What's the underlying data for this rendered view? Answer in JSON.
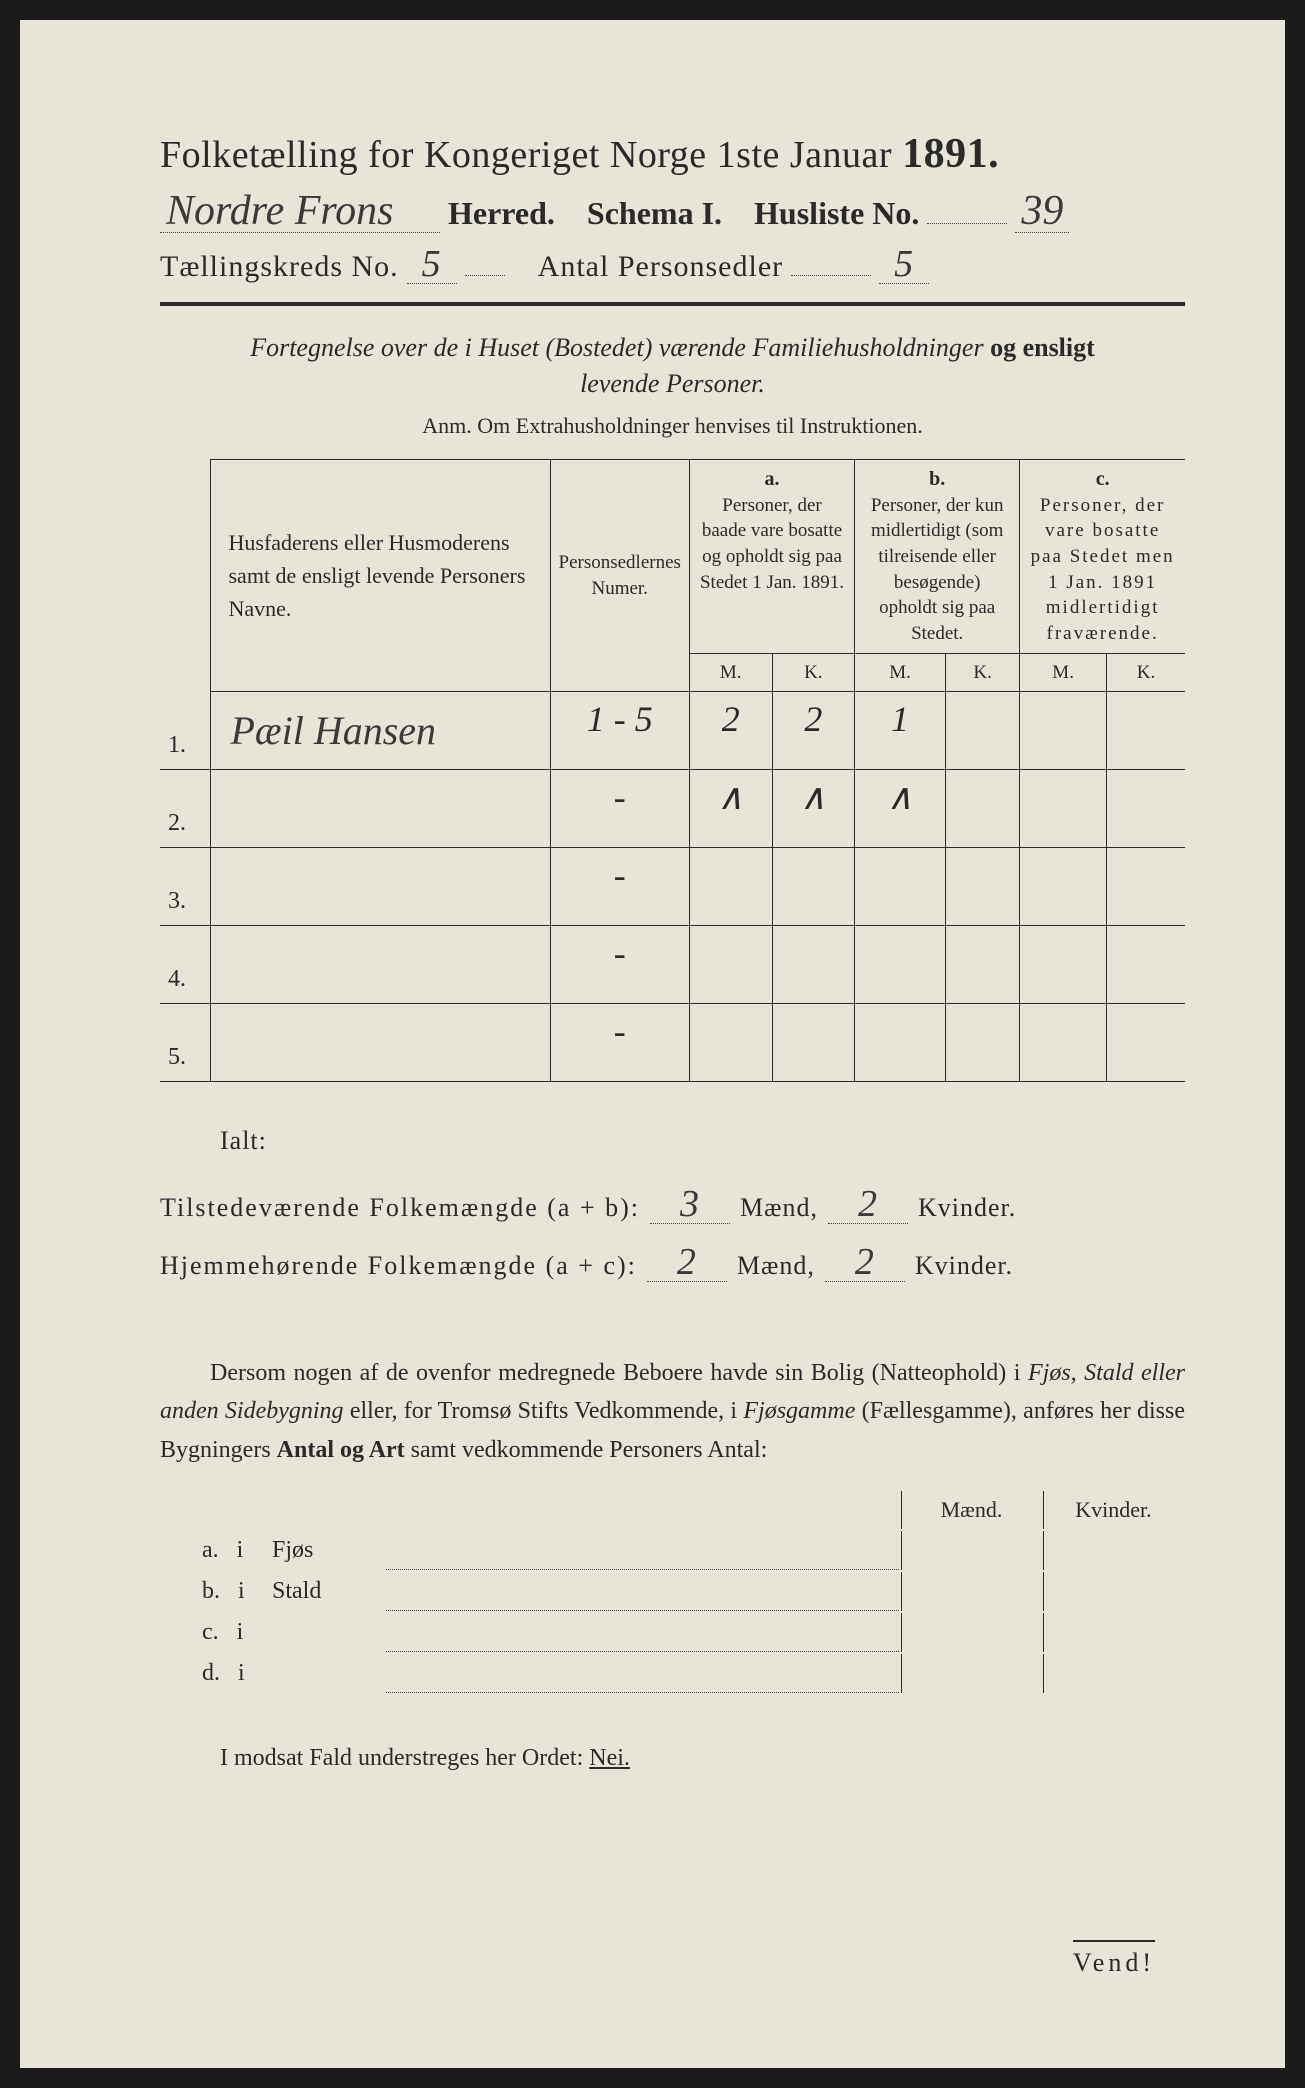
{
  "header": {
    "title_prefix": "Folketælling for Kongeriget Norge 1ste Januar",
    "year": "1891.",
    "herred_value": "Nordre Frons",
    "herred_label": "Herred.",
    "schema_label": "Schema I.",
    "husliste_label": "Husliste No.",
    "husliste_value": "39",
    "kreds_label": "Tællingskreds No.",
    "kreds_value": "5",
    "antal_label": "Antal Personsedler",
    "antal_value": "5"
  },
  "subtitle": {
    "line1_italic1": "Fortegnelse over de i Huset (Bostedet) værende Familiehusholdninger",
    "line1_bold": "og ensligt",
    "line2_italic": "levende Personer."
  },
  "anm": "Anm. Om Extrahusholdninger henvises til Instruktionen.",
  "table": {
    "head_names": "Husfaderens eller Husmoderens samt de ensligt levende Personers Navne.",
    "head_person": "Personsedlernes Numer.",
    "col_a_letter": "a.",
    "col_a": "Personer, der baade vare bosatte og opholdt sig paa Stedet 1 Jan. 1891.",
    "col_b_letter": "b.",
    "col_b": "Personer, der kun midlertidigt (som tilreisende eller besøgende) opholdt sig paa Stedet.",
    "col_c_letter": "c.",
    "col_c": "Personer, der vare bosatte paa Stedet men 1 Jan. 1891 midlertidigt fraværende.",
    "m": "M.",
    "k": "K.",
    "rows": [
      {
        "num": "1.",
        "name": "Pæil Hansen",
        "person": "1 - 5",
        "a_m": "2",
        "a_k": "2",
        "b_m": "1",
        "b_k": "",
        "c_m": "",
        "c_k": ""
      },
      {
        "num": "2.",
        "name": "",
        "person": "-",
        "a_m": "∧",
        "a_k": "∧",
        "b_m": "∧",
        "b_k": "",
        "c_m": "",
        "c_k": ""
      },
      {
        "num": "3.",
        "name": "",
        "person": "-",
        "a_m": "",
        "a_k": "",
        "b_m": "",
        "b_k": "",
        "c_m": "",
        "c_k": ""
      },
      {
        "num": "4.",
        "name": "",
        "person": "-",
        "a_m": "",
        "a_k": "",
        "b_m": "",
        "b_k": "",
        "c_m": "",
        "c_k": ""
      },
      {
        "num": "5.",
        "name": "",
        "person": "-",
        "a_m": "",
        "a_k": "",
        "b_m": "",
        "b_k": "",
        "c_m": "",
        "c_k": ""
      }
    ]
  },
  "totals": {
    "ialt": "Ialt:",
    "row1_label": "Tilstedeværende Folkemængde (a + b):",
    "row1_m": "3",
    "row1_k": "2",
    "row2_label": "Hjemmehørende Folkemængde (a + c):",
    "row2_m": "2",
    "row2_k": "2",
    "maend": "Mænd,",
    "kvinder": "Kvinder."
  },
  "para": "Dersom nogen af de ovenfor medregnede Beboere havde sin Bolig (Natteophold) i Fjøs, Stald eller anden Sidebygning eller, for Tromsø Stifts Vedkommende, i Fjøsgamme (Fællesgamme), anføres her disse Bygningers Antal og Art samt vedkommende Personers Antal:",
  "buildings": {
    "head_m": "Mænd.",
    "head_k": "Kvinder.",
    "rows": [
      {
        "letter": "a.",
        "i": "i",
        "label": "Fjøs"
      },
      {
        "letter": "b.",
        "i": "i",
        "label": "Stald"
      },
      {
        "letter": "c.",
        "i": "i",
        "label": ""
      },
      {
        "letter": "d.",
        "i": "i",
        "label": ""
      }
    ]
  },
  "nei_line": "I modsat Fald understreges her Ordet:",
  "nei": "Nei.",
  "vend": "Vend!",
  "colors": {
    "paper": "#e8e4d8",
    "ink": "#2a2a2a",
    "background": "#1a1a1a"
  }
}
